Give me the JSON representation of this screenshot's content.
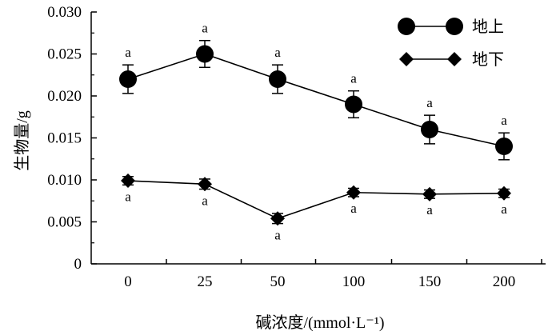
{
  "chart_data": {
    "type": "line",
    "categories": [
      "0",
      "25",
      "50",
      "100",
      "150",
      "200"
    ],
    "ylim": [
      0,
      0.03
    ],
    "yticks": [
      "0",
      "0.005",
      "0.010",
      "0.015",
      "0.020",
      "0.025",
      "0.030"
    ],
    "xlabel": "碱浓度/(mmol·L⁻¹)",
    "ylabel": "生物量/g",
    "grid": false,
    "legend_position": "top-right",
    "series": [
      {
        "name": "地上",
        "marker": "circle",
        "color": "#000000",
        "values": [
          0.022,
          0.025,
          0.022,
          0.019,
          0.016,
          0.014
        ],
        "errors": [
          0.0017,
          0.0016,
          0.0017,
          0.0016,
          0.0017,
          0.0016
        ],
        "labels": [
          "a",
          "a",
          "a",
          "a",
          "a",
          "a"
        ],
        "label_position": "above"
      },
      {
        "name": "地下",
        "marker": "diamond",
        "color": "#000000",
        "values": [
          0.0099,
          0.0095,
          0.0054,
          0.0085,
          0.0083,
          0.0084
        ],
        "errors": [
          0.0005,
          0.0006,
          0.0006,
          0.0005,
          0.0005,
          0.0005
        ],
        "labels": [
          "a",
          "a",
          "a",
          "a",
          "a",
          "a"
        ],
        "label_position": "below"
      }
    ]
  }
}
